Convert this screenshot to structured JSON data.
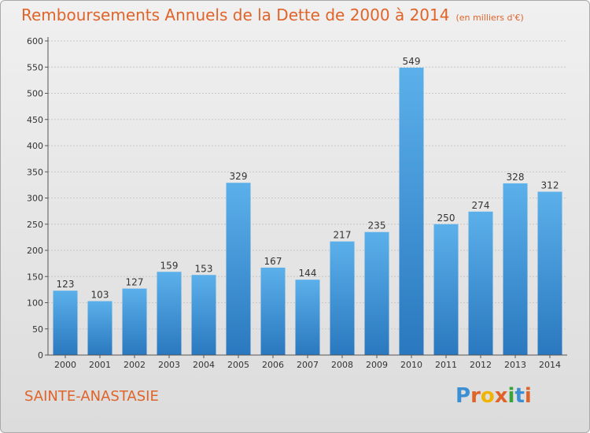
{
  "chart_data": {
    "type": "bar",
    "title": "Remboursements Annuels de la Dette de 2000 à 2014",
    "unit_note": "(en milliers d'€)",
    "categories": [
      "2000",
      "2001",
      "2002",
      "2003",
      "2004",
      "2005",
      "2006",
      "2007",
      "2008",
      "2009",
      "2010",
      "2011",
      "2012",
      "2013",
      "2014"
    ],
    "values": [
      123,
      103,
      127,
      159,
      153,
      329,
      167,
      144,
      217,
      235,
      549,
      250,
      274,
      328,
      312
    ],
    "yticks": [
      0,
      50,
      100,
      150,
      200,
      250,
      300,
      350,
      400,
      450,
      500,
      550,
      600
    ],
    "ylim": [
      0,
      600
    ],
    "grid": true,
    "bar_color": "#3d8fd4",
    "title_color": "#e0642a"
  },
  "footer": {
    "town": "SAINTE-ANASTASIE",
    "logo": "Proxiti"
  }
}
